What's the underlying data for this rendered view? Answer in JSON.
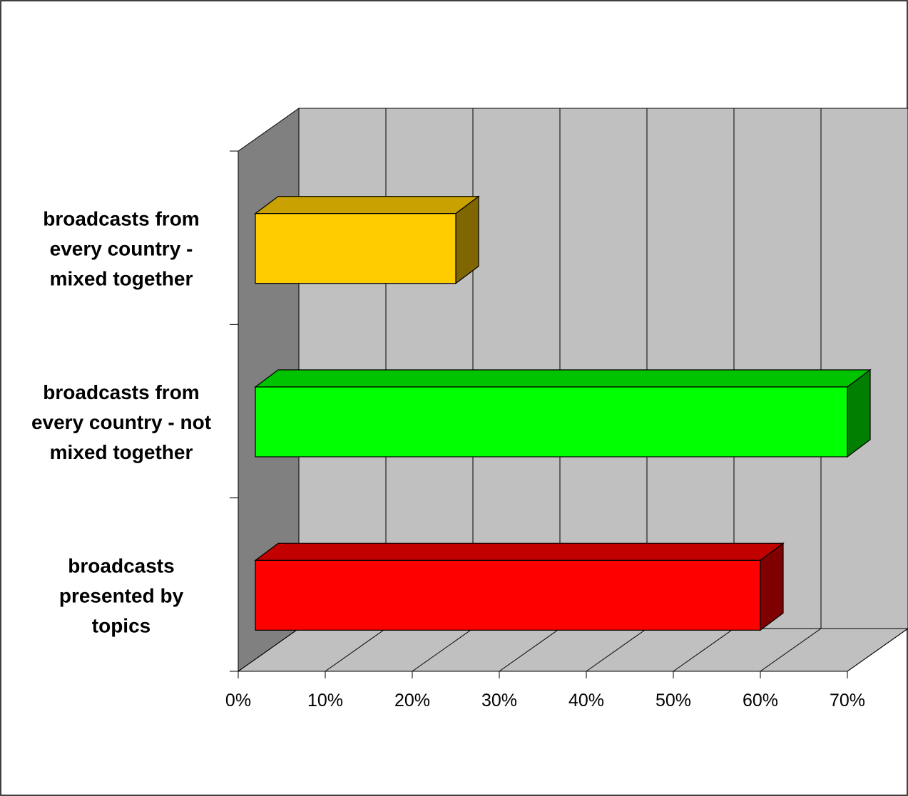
{
  "chart_data": {
    "type": "bar",
    "orientation": "horizontal",
    "style": "3d",
    "categories": [
      "broadcasts from every country - mixed together",
      "broadcasts from every country - not mixed together",
      "broadcasts presented by topics"
    ],
    "category_lines": [
      [
        "broadcasts from",
        "every country -",
        "mixed together"
      ],
      [
        "broadcasts from",
        "every country - not",
        "mixed together"
      ],
      [
        "broadcasts",
        "presented by",
        "topics"
      ]
    ],
    "values": [
      25,
      70,
      60
    ],
    "colors": [
      {
        "front": "#FFCC00",
        "top": "#C9A100",
        "side": "#7F6600"
      },
      {
        "front": "#00FF00",
        "top": "#00C300",
        "side": "#007F00"
      },
      {
        "front": "#FF0000",
        "top": "#C30000",
        "side": "#7F0000"
      }
    ],
    "x_ticks": [
      "0%",
      "10%",
      "20%",
      "30%",
      "40%",
      "50%",
      "60%",
      "70%"
    ],
    "xlim": [
      0,
      70
    ],
    "xlabel": "",
    "ylabel": "",
    "title": "",
    "grid": true,
    "legend": "none",
    "wall_colors": {
      "back": "#C0C0C0",
      "side": "#808080",
      "floor": "#C0C0C0"
    }
  }
}
